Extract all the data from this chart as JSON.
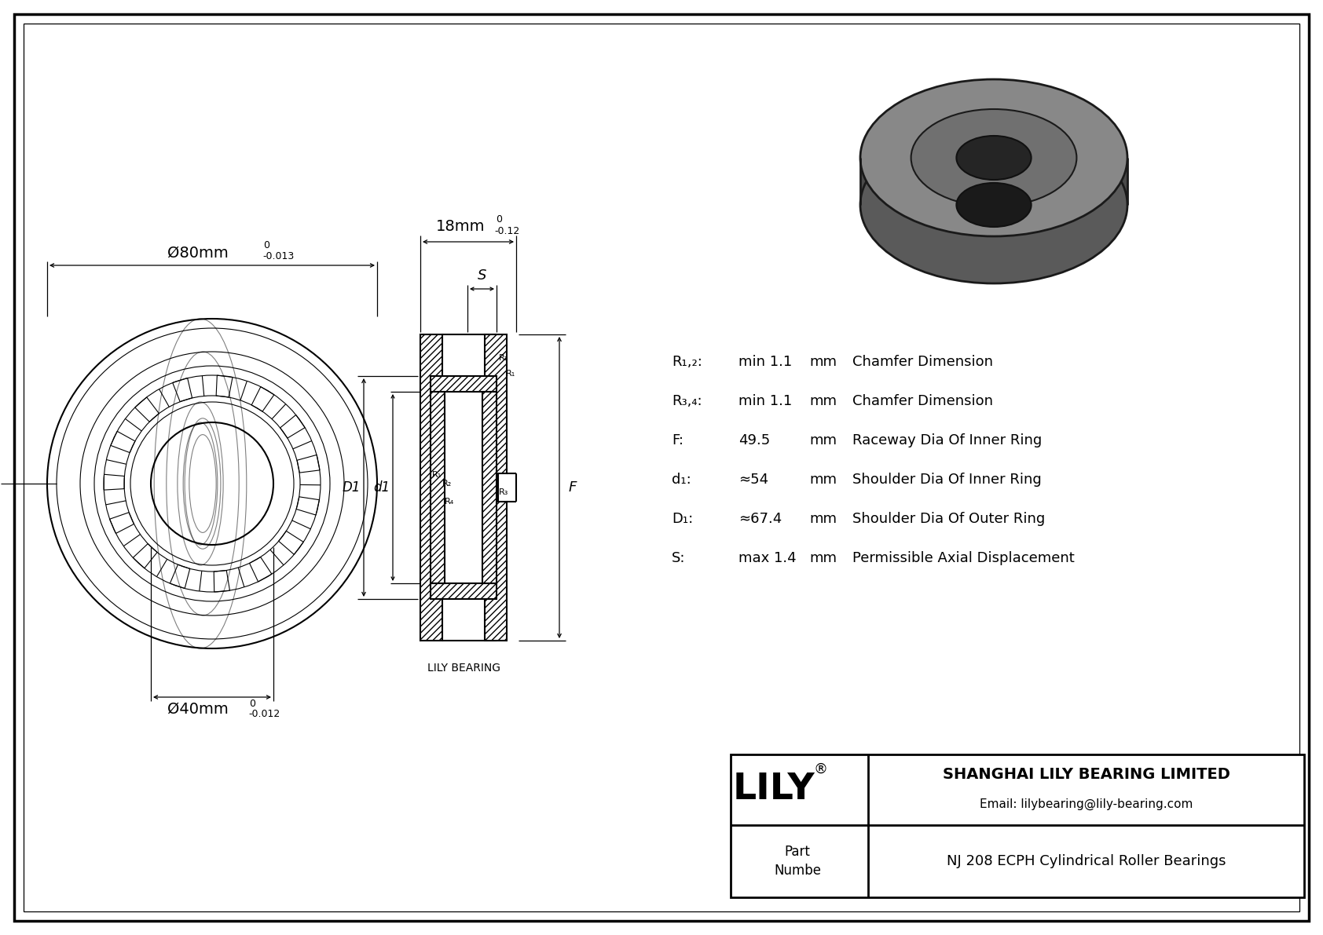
{
  "bg_color": "#ffffff",
  "draw_color": "#000000",
  "outer_diameter_label": "Ø80mm",
  "outer_diam_tol_upper": "0",
  "outer_diam_tol_lower": "-0.013",
  "inner_diameter_label": "Ø40mm",
  "inner_diam_tol_upper": "0",
  "inner_diam_tol_lower": "-0.012",
  "width_label": "18mm",
  "width_tol_upper": "0",
  "width_tol_lower": "-0.12",
  "specs": [
    {
      "param": "R₁,₂:",
      "value": "min 1.1",
      "unit": "mm",
      "desc": "Chamfer Dimension"
    },
    {
      "param": "R₃,₄:",
      "value": "min 1.1",
      "unit": "mm",
      "desc": "Chamfer Dimension"
    },
    {
      "param": "F:",
      "value": "49.5",
      "unit": "mm",
      "desc": "Raceway Dia Of Inner Ring"
    },
    {
      "param": "d₁:",
      "value": "≈54",
      "unit": "mm",
      "desc": "Shoulder Dia Of Inner Ring"
    },
    {
      "param": "D₁:",
      "value": "≈67.4",
      "unit": "mm",
      "desc": "Shoulder Dia Of Outer Ring"
    },
    {
      "param": "S:",
      "value": "max 1.4",
      "unit": "mm",
      "desc": "Permissible Axial Displacement"
    }
  ],
  "logo_text": "LILY",
  "logo_reg": "®",
  "company_name": "SHANGHAI LILY BEARING LIMITED",
  "company_email": "Email: lilybearing@lily-bearing.com",
  "part_label": "Part\nNumbe",
  "part_number": "NJ 208 ECPH Cylindrical Roller Bearings",
  "lily_bearing_label": "LILY BEARING",
  "label_S": "S",
  "label_D1": "D1",
  "label_d1": "d1",
  "label_F": "F"
}
